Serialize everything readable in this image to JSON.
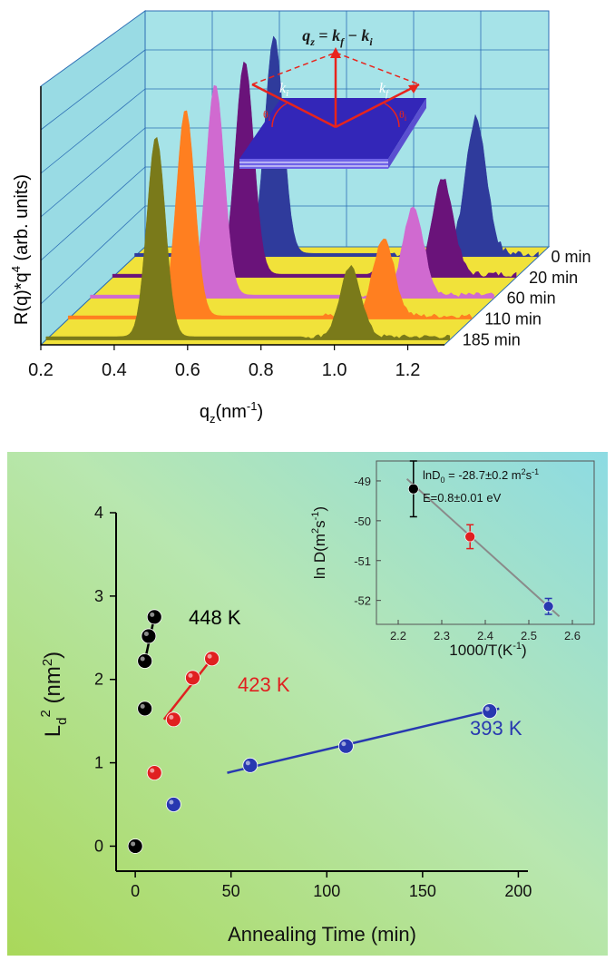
{
  "chart_data": [
    {
      "type": "area",
      "ylabel": "R(q)*q",
      "ylabel_sup": "4",
      "ylabel_unit": " (arb. units)",
      "xlabel": "q",
      "xlabel_sub": "z",
      "xlabel_unit": "(nm",
      "xlabel_unit_sup": "-1",
      "xlabel_close": ")",
      "x_ticks": [
        "0.2",
        "0.4",
        "0.6",
        "0.8",
        "1.0",
        "1.2"
      ],
      "xlim": [
        0.2,
        1.3
      ],
      "series": [
        {
          "name": "0 min",
          "color": "#2f3b9c",
          "peaks": [
            [
              0.58,
              1.0
            ],
            [
              1.13,
              0.62
            ]
          ]
        },
        {
          "name": "20 min",
          "color": "#6a137a",
          "peaks": [
            [
              0.56,
              0.98
            ],
            [
              1.1,
              0.44
            ]
          ]
        },
        {
          "name": "60 min",
          "color": "#d06ad0",
          "peaks": [
            [
              0.54,
              0.97
            ],
            [
              1.08,
              0.4
            ]
          ]
        },
        {
          "name": "110 min",
          "color": "#ff7f20",
          "peaks": [
            [
              0.52,
              0.95
            ],
            [
              1.06,
              0.36
            ]
          ]
        },
        {
          "name": "185 min",
          "color": "#7a7a1a",
          "peaks": [
            [
              0.5,
              0.92
            ],
            [
              1.03,
              0.32
            ]
          ]
        }
      ],
      "inset_formula": {
        "lhs": "q",
        "lhs_sub": "z",
        "eq": " = ",
        "kf": "k",
        "kf_sub": "f",
        "minus": " − ",
        "ki": "k",
        "ki_sub": "i"
      },
      "inset_labels": {
        "ki": "k",
        "ki_sub": "i",
        "kf": "k",
        "kf_sub": "f",
        "theta": "θ",
        "theta_sub": "i"
      }
    },
    {
      "type": "scatter",
      "xlabel": "Annealing Time (min)",
      "ylabel": "L",
      "ylabel_sub": "d",
      "ylabel_sup": "2",
      "ylabel_unit": " (nm",
      "ylabel_unit_sup": "2",
      "ylabel_close": ")",
      "x_ticks": [
        "0",
        "50",
        "100",
        "150",
        "200"
      ],
      "y_ticks": [
        "0",
        "1",
        "2",
        "3",
        "4"
      ],
      "xlim": [
        -10,
        205
      ],
      "ylim": [
        -0.3,
        4.0
      ],
      "series": [
        {
          "name": "448 K",
          "color": "#000000",
          "x": [
            0,
            5,
            5,
            7,
            10
          ],
          "y": [
            0.0,
            1.65,
            2.22,
            2.52,
            2.75
          ],
          "fit": [
            [
              5,
              2.22
            ],
            [
              10,
              2.75
            ]
          ]
        },
        {
          "name": "423 K",
          "color": "#e02020",
          "x": [
            10,
            20,
            30,
            40
          ],
          "y": [
            0.88,
            1.52,
            2.02,
            2.25
          ],
          "fit": [
            [
              15,
              1.52
            ],
            [
              40,
              2.25
            ]
          ]
        },
        {
          "name": "393 K",
          "color": "#2838b0",
          "x": [
            20,
            60,
            110,
            185
          ],
          "y": [
            0.5,
            0.97,
            1.2,
            1.62
          ],
          "fit": [
            [
              48,
              0.88
            ],
            [
              190,
              1.65
            ]
          ]
        }
      ],
      "inset": {
        "xlabel": "1000/T(K",
        "xlabel_sup": "-1",
        "xlabel_close": ")",
        "ylabel": "ln D(m",
        "ylabel_sup1": "2",
        "ylabel_mid": "s",
        "ylabel_sup2": "-1",
        "ylabel_close": ")",
        "x_ticks": [
          "2.2",
          "2.3",
          "2.4",
          "2.5",
          "2.6"
        ],
        "y_ticks": [
          "-49",
          "-50",
          "-51",
          "-52"
        ],
        "xlim": [
          2.15,
          2.65
        ],
        "ylim": [
          -52.6,
          -48.5
        ],
        "points": [
          {
            "x": 2.235,
            "y": -49.2,
            "err": 0.7,
            "color": "#000000"
          },
          {
            "x": 2.365,
            "y": -50.4,
            "err": 0.3,
            "color": "#e02020"
          },
          {
            "x": 2.545,
            "y": -52.15,
            "err": 0.2,
            "color": "#2838b0"
          }
        ],
        "fit": [
          [
            2.22,
            -48.95
          ],
          [
            2.57,
            -52.4
          ]
        ],
        "annotation_line1": "lnD",
        "annotation_line1_sub": "0",
        "annotation_line1_rest": " = -28.7±0.2 m",
        "annotation_line1_sup1": "2",
        "annotation_line1_mid": "s",
        "annotation_line1_sup2": "-1",
        "annotation_line2": "E=0.8±0.01 eV"
      }
    }
  ]
}
